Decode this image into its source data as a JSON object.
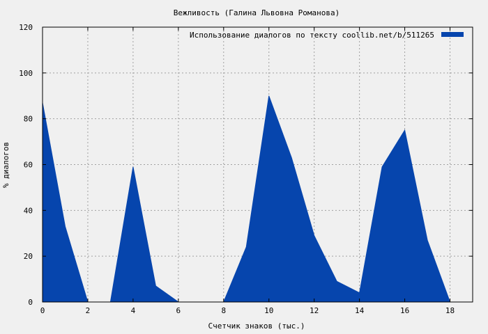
{
  "chart_data": {
    "type": "area",
    "title": "Вежливость (Галина Львовна Романова)",
    "xlabel": "Счетчик знаков (тыс.)",
    "ylabel": "% диалогов",
    "xlim": [
      0,
      19
    ],
    "ylim": [
      0,
      120
    ],
    "xticks": [
      0,
      2,
      4,
      6,
      8,
      10,
      12,
      14,
      16,
      18
    ],
    "yticks": [
      0,
      20,
      40,
      60,
      80,
      100,
      120
    ],
    "grid": true,
    "legend_position": "top-right",
    "series": [
      {
        "name": "Использование диалогов по тексту  coollib.net/b/511265",
        "color": "#0645ad",
        "x": [
          0,
          1,
          2,
          3,
          4,
          5,
          6,
          7,
          8,
          9,
          10,
          11,
          12,
          13,
          14,
          15,
          16,
          17,
          18
        ],
        "y": [
          87,
          33,
          0,
          0,
          59,
          7,
          0,
          0,
          0,
          24,
          90,
          63,
          29,
          9,
          4,
          59,
          75,
          27,
          0
        ]
      }
    ]
  }
}
